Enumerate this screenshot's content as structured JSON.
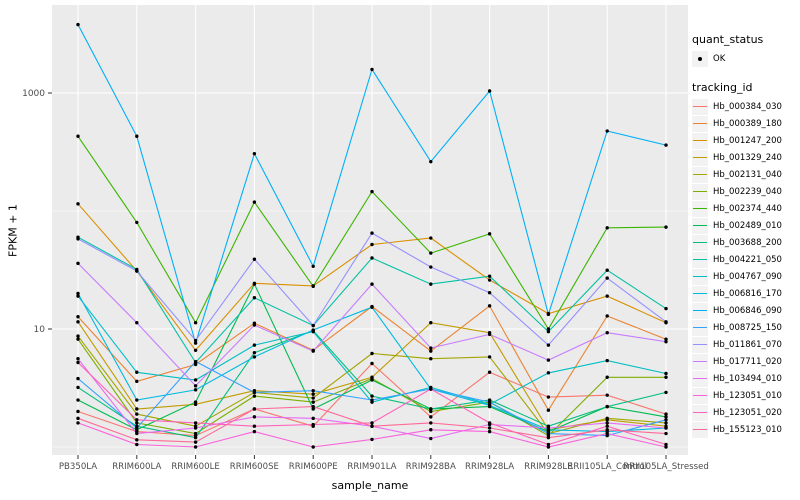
{
  "chart_data": {
    "type": "line",
    "title": "",
    "xlabel": "sample_name",
    "ylabel": "FPKM + 1",
    "y_scale": "log10",
    "y_ticks": [
      10,
      1000
    ],
    "y_minor_ticks": [
      1,
      100
    ],
    "ylim": [
      0.85,
      5500
    ],
    "grid": "on",
    "legend_position": "right",
    "point_shape": "black-dot",
    "categories": [
      "PB350LA",
      "RRIM600LA",
      "RRIM600LE",
      "RRIM600SE",
      "RRIM600PE",
      "RRIM901LA",
      "RRIM928BA",
      "RRIM928LA",
      "RRIM928LE",
      "RRII105LA_Control",
      "RRII105LA_Stressed"
    ],
    "series": [
      {
        "id": "Hb_000384_030",
        "color": "#F8766D",
        "values": [
          2.0,
          1.35,
          1.25,
          2.1,
          1.5,
          5.1,
          1.8,
          4.3,
          2.65,
          2.75,
          1.9
        ]
      },
      {
        "id": "Hb_000389_180",
        "color": "#EA8331",
        "values": [
          12.7,
          3.6,
          5.0,
          11.2,
          6.6,
          15.5,
          6.5,
          15.7,
          2.05,
          12.9,
          8.2
        ]
      },
      {
        "id": "Hb_001247_200",
        "color": "#D89000",
        "values": [
          115,
          31,
          6.6,
          24.4,
          23.2,
          52,
          59,
          26,
          13.5,
          19,
          11.3
        ]
      },
      {
        "id": "Hb_001329_240",
        "color": "#C09B00",
        "values": [
          11.5,
          2.1,
          2.3,
          3.0,
          2.8,
          3.9,
          11.3,
          9.3,
          1.4,
          1.7,
          1.5
        ]
      },
      {
        "id": "Hb_002131_040",
        "color": "#A3A500",
        "values": [
          8.7,
          1.9,
          1.5,
          2.9,
          2.6,
          6.2,
          5.6,
          5.8,
          1.3,
          1.75,
          1.6
        ]
      },
      {
        "id": "Hb_002239_040",
        "color": "#7CAE00",
        "values": [
          8.2,
          1.6,
          1.3,
          2.7,
          2.4,
          3.8,
          2.0,
          2.4,
          1.25,
          3.9,
          3.9
        ]
      },
      {
        "id": "Hb_002374_440",
        "color": "#39B600",
        "values": [
          430,
          80,
          11.3,
          119,
          23,
          146,
          44,
          64,
          10,
          72,
          73
        ]
      },
      {
        "id": "Hb_002489_010",
        "color": "#00BB4E",
        "values": [
          2.5,
          1.4,
          2.4,
          24,
          2.1,
          3.7,
          2.1,
          2.2,
          1.35,
          2.2,
          1.8
        ]
      },
      {
        "id": "Hb_003688_200",
        "color": "#00BF7D",
        "values": [
          3.2,
          1.5,
          1.2,
          6.3,
          9.7,
          2.7,
          2.1,
          2.5,
          1.5,
          2.2,
          2.9
        ]
      },
      {
        "id": "Hb_004221_050",
        "color": "#00C1A3",
        "values": [
          60,
          32,
          5.2,
          18.4,
          10.7,
          40,
          24,
          28,
          9.5,
          31.5,
          14.9
        ]
      },
      {
        "id": "Hb_004767_090",
        "color": "#00BFC4",
        "values": [
          19,
          4.3,
          3.7,
          7.3,
          9.5,
          2.4,
          3.2,
          2.3,
          4.25,
          5.4,
          4.2
        ]
      },
      {
        "id": "Hb_006816_170",
        "color": "#00BAE0",
        "values": [
          20,
          2.5,
          3.05,
          5.8,
          9.8,
          15.3,
          3.1,
          2.25,
          1.4,
          1.35,
          1.45
        ]
      },
      {
        "id": "Hb_006846_090",
        "color": "#00B0F6",
        "values": [
          3800,
          430,
          7.6,
          306,
          34,
          1585,
          262,
          1040,
          13.3,
          476,
          362
        ]
      },
      {
        "id": "Hb_008725_150",
        "color": "#35A2FF",
        "values": [
          3.8,
          1.45,
          5.3,
          2.9,
          3.0,
          2.5,
          3.1,
          2.4,
          1.3,
          1.25,
          1.7
        ]
      },
      {
        "id": "Hb_011861_070",
        "color": "#9590FF",
        "values": [
          58,
          31,
          8.0,
          39,
          10.7,
          65,
          33.5,
          20.3,
          7.3,
          27,
          11.5
        ]
      },
      {
        "id": "Hb_017711_020",
        "color": "#C77CFF",
        "values": [
          36,
          11.3,
          3.3,
          10.8,
          6.5,
          24,
          6.9,
          9.0,
          5.45,
          9.3,
          7.8
        ]
      },
      {
        "id": "Hb_103494_010",
        "color": "#E76BF3",
        "values": [
          5.6,
          1.3,
          1.45,
          1.8,
          1.75,
          1.5,
          1.18,
          1.55,
          1.45,
          1.6,
          1.45
        ]
      },
      {
        "id": "Hb_123051_010",
        "color": "#FA62DB",
        "values": [
          1.6,
          1.05,
          1.0,
          1.35,
          1.0,
          1.16,
          1.4,
          1.35,
          1.0,
          1.3,
          1.0
        ]
      },
      {
        "id": "Hb_123051_020",
        "color": "#FF62BC",
        "values": [
          5.2,
          1.7,
          1.6,
          1.5,
          1.55,
          1.6,
          3.1,
          1.6,
          1.05,
          1.5,
          1.05
        ]
      },
      {
        "id": "Hb_155123_010",
        "color": "#FF6A98",
        "values": [
          1.75,
          1.15,
          1.1,
          2.1,
          2.2,
          1.5,
          1.6,
          1.45,
          1.2,
          1.4,
          1.3
        ]
      }
    ],
    "legend": {
      "quant_status_title": "quant_status",
      "quant_status_items": [
        {
          "label": "OK",
          "symbol": "black-dot"
        }
      ],
      "tracking_title": "tracking_id"
    },
    "style": {
      "panel_bg": "#EBEBEB",
      "grid_color": "#FFFFFF",
      "point_color": "#000000",
      "axis_text_color": "#4D4D4D",
      "tick_color": "#333333",
      "legend_key_bg": "#F2F2F2"
    }
  }
}
